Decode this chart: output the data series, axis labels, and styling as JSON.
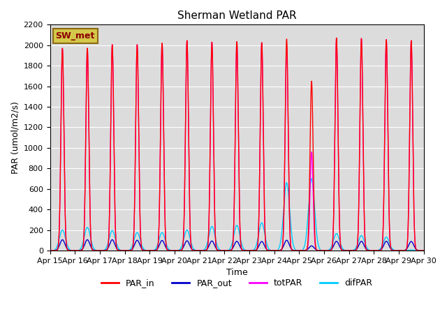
{
  "title": "Sherman Wetland PAR",
  "xlabel": "Time",
  "ylabel": "PAR (umol/m2/s)",
  "ylim": [
    0,
    2200
  ],
  "legend_label": "SW_met",
  "legend_box_facecolor": "#d4c84a",
  "legend_box_edgecolor": "#8B6914",
  "background_color": "#dcdcdc",
  "title_fontsize": 11,
  "axis_label_fontsize": 9,
  "tick_fontsize": 8,
  "par_in_color": "#ff0000",
  "par_out_color": "#0000cc",
  "totpar_color": "#ff00ff",
  "difpar_color": "#00ccff",
  "line_width": 1.0,
  "total_days": 15,
  "peaks": [
    {
      "day": 0,
      "par_in": 1970,
      "par_out": 105,
      "totpar": 1970,
      "difpar": 200
    },
    {
      "day": 1,
      "par_in": 1970,
      "par_out": 105,
      "totpar": 1970,
      "difpar": 225
    },
    {
      "day": 2,
      "par_in": 2005,
      "par_out": 105,
      "totpar": 2005,
      "difpar": 195
    },
    {
      "day": 3,
      "par_in": 2005,
      "par_out": 100,
      "totpar": 2005,
      "difpar": 175
    },
    {
      "day": 4,
      "par_in": 2020,
      "par_out": 98,
      "totpar": 2020,
      "difpar": 175
    },
    {
      "day": 5,
      "par_in": 2045,
      "par_out": 95,
      "totpar": 2045,
      "difpar": 200
    },
    {
      "day": 6,
      "par_in": 2030,
      "par_out": 93,
      "totpar": 2030,
      "difpar": 235
    },
    {
      "day": 7,
      "par_in": 2035,
      "par_out": 90,
      "totpar": 2035,
      "difpar": 245
    },
    {
      "day": 8,
      "par_in": 2025,
      "par_out": 88,
      "totpar": 2025,
      "difpar": 270
    },
    {
      "day": 9,
      "par_in": 2060,
      "par_out": 100,
      "totpar": 1980,
      "difpar": 660
    },
    {
      "day": 10,
      "par_in": 1650,
      "par_out": 45,
      "totpar": 960,
      "difpar": 700
    },
    {
      "day": 11,
      "par_in": 2070,
      "par_out": 90,
      "totpar": 2070,
      "difpar": 165
    },
    {
      "day": 12,
      "par_in": 2065,
      "par_out": 90,
      "totpar": 2065,
      "difpar": 145
    },
    {
      "day": 13,
      "par_in": 2055,
      "par_out": 90,
      "totpar": 2055,
      "difpar": 130
    },
    {
      "day": 14,
      "par_in": 2045,
      "par_out": 88,
      "totpar": 2045,
      "difpar": 5
    }
  ]
}
